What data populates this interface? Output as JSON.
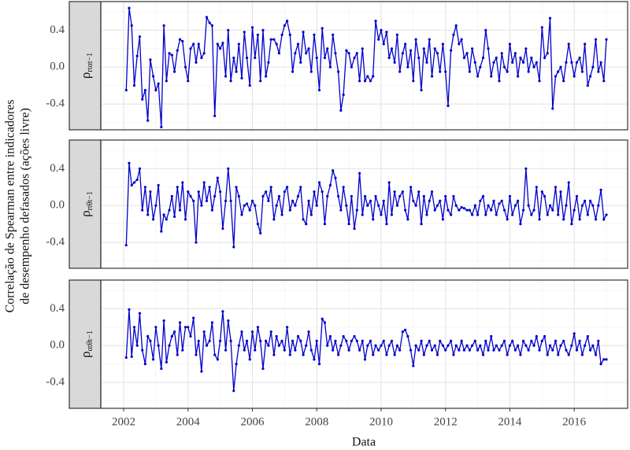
{
  "chart_data": {
    "type": "line",
    "ylabel": [
      "Correlação de Spearman entre indicadores",
      "de desempenho defasados (ações livre)"
    ],
    "xlabel": "Data",
    "xlim": [
      2001.29,
      2017.66
    ],
    "xticks": [
      2002,
      2004,
      2006,
      2008,
      2010,
      2012,
      2014,
      2016
    ],
    "ylim": [
      -0.68,
      0.71
    ],
    "yticks": [
      0.4,
      {
        "value": 0,
        "label": "0.0"
      },
      -0.4
    ],
    "grid": true,
    "x": [
      2002.08,
      2002.17,
      2002.25,
      2002.33,
      2002.42,
      2002.5,
      2002.58,
      2002.67,
      2002.75,
      2002.83,
      2002.92,
      2003,
      2003.08,
      2003.17,
      2003.25,
      2003.33,
      2003.42,
      2003.5,
      2003.58,
      2003.67,
      2003.75,
      2003.83,
      2003.92,
      2004,
      2004.08,
      2004.17,
      2004.25,
      2004.33,
      2004.42,
      2004.5,
      2004.58,
      2004.67,
      2004.75,
      2004.83,
      2004.92,
      2005,
      2005.08,
      2005.17,
      2005.25,
      2005.33,
      2005.42,
      2005.5,
      2005.58,
      2005.67,
      2005.75,
      2005.83,
      2005.92,
      2006,
      2006.08,
      2006.17,
      2006.25,
      2006.33,
      2006.42,
      2006.5,
      2006.58,
      2006.67,
      2006.75,
      2006.83,
      2006.92,
      2007,
      2007.08,
      2007.17,
      2007.25,
      2007.33,
      2007.42,
      2007.5,
      2007.58,
      2007.67,
      2007.75,
      2007.83,
      2007.92,
      2008,
      2008.08,
      2008.17,
      2008.25,
      2008.33,
      2008.42,
      2008.5,
      2008.58,
      2008.67,
      2008.75,
      2008.83,
      2008.92,
      2009,
      2009.08,
      2009.17,
      2009.25,
      2009.33,
      2009.42,
      2009.5,
      2009.58,
      2009.67,
      2009.75,
      2009.83,
      2009.92,
      2010,
      2010.08,
      2010.17,
      2010.25,
      2010.33,
      2010.42,
      2010.5,
      2010.58,
      2010.67,
      2010.75,
      2010.83,
      2010.92,
      2011,
      2011.08,
      2011.17,
      2011.25,
      2011.33,
      2011.42,
      2011.5,
      2011.58,
      2011.67,
      2011.75,
      2011.83,
      2011.92,
      2012,
      2012.08,
      2012.17,
      2012.25,
      2012.33,
      2012.42,
      2012.5,
      2012.58,
      2012.67,
      2012.75,
      2012.83,
      2012.92,
      2013,
      2013.08,
      2013.17,
      2013.25,
      2013.33,
      2013.42,
      2013.5,
      2013.58,
      2013.67,
      2013.75,
      2013.83,
      2013.92,
      2014,
      2014.08,
      2014.17,
      2014.25,
      2014.33,
      2014.42,
      2014.5,
      2014.58,
      2014.67,
      2014.75,
      2014.83,
      2014.92,
      2015,
      2015.08,
      2015.17,
      2015.25,
      2015.33,
      2015.42,
      2015.5,
      2015.58,
      2015.67,
      2015.75,
      2015.83,
      2015.92,
      2016,
      2016.08,
      2016.17,
      2016.25,
      2016.33,
      2016.42,
      2016.5,
      2016.58,
      2016.67,
      2016.75,
      2016.83,
      2016.92,
      2017
    ],
    "series": [
      {
        "name": "ρ",
        "subscript": "rtαt−1",
        "color": "#0000cc",
        "values": [
          -0.25,
          0.64,
          0.45,
          -0.2,
          0.12,
          0.33,
          -0.35,
          -0.25,
          -0.58,
          0.08,
          -0.1,
          -0.25,
          -0.18,
          -0.65,
          0.45,
          -0.15,
          0.15,
          0.13,
          -0.05,
          0.18,
          0.3,
          0.28,
          0.0,
          -0.15,
          0.2,
          0.25,
          0.05,
          0.25,
          0.1,
          0.15,
          0.54,
          0.48,
          0.45,
          -0.53,
          0.25,
          0.2,
          0.26,
          -0.1,
          0.4,
          -0.15,
          0.1,
          -0.05,
          0.25,
          -0.12,
          0.38,
          0.1,
          -0.2,
          0.43,
          0.1,
          0.35,
          -0.15,
          0.4,
          -0.1,
          0.05,
          0.3,
          0.3,
          0.25,
          0.15,
          0.35,
          0.45,
          0.5,
          0.35,
          -0.05,
          0.15,
          0.25,
          0.05,
          0.38,
          0.15,
          0.2,
          -0.05,
          0.35,
          0.1,
          -0.25,
          0.42,
          0.1,
          0.2,
          0.0,
          0.35,
          0.15,
          -0.05,
          -0.47,
          -0.3,
          0.18,
          0.15,
          0.0,
          0.1,
          0.15,
          -0.15,
          0.2,
          -0.15,
          -0.1,
          -0.15,
          -0.1,
          0.5,
          0.3,
          0.4,
          0.25,
          0.38,
          0.1,
          0.2,
          0.05,
          0.35,
          -0.05,
          0.15,
          0.25,
          0.0,
          0.18,
          -0.15,
          0.3,
          0.1,
          -0.25,
          0.2,
          0.05,
          0.3,
          -0.1,
          0.2,
          0.15,
          -0.05,
          0.25,
          -0.05,
          -0.42,
          0.18,
          0.35,
          0.45,
          0.25,
          0.3,
          0.1,
          0.15,
          -0.05,
          0.2,
          0.05,
          -0.1,
          0.0,
          0.1,
          0.4,
          0.2,
          -0.1,
          0.05,
          0.1,
          -0.15,
          0.15,
          0.0,
          -0.05,
          0.25,
          0.05,
          0.15,
          -0.1,
          0.1,
          0.05,
          0.2,
          -0.05,
          0.1,
          0.0,
          0.05,
          -0.15,
          0.43,
          0.1,
          0.15,
          0.53,
          -0.45,
          -0.1,
          -0.05,
          0.0,
          -0.15,
          0.05,
          0.25,
          0.05,
          -0.1,
          0.05,
          0.1,
          -0.05,
          0.25,
          -0.2,
          -0.1,
          0.0,
          0.3,
          -0.05,
          0.05,
          -0.15,
          0.3
        ]
      },
      {
        "name": "ρ",
        "subscript": "rtθt−1",
        "color": "#0000cc",
        "values": [
          -0.43,
          0.46,
          0.22,
          0.25,
          0.28,
          0.4,
          -0.05,
          0.2,
          -0.1,
          0.15,
          -0.15,
          0.0,
          0.22,
          -0.28,
          -0.1,
          -0.15,
          -0.05,
          0.1,
          -0.12,
          0.2,
          -0.05,
          0.25,
          -0.15,
          0.15,
          0.1,
          0.05,
          -0.4,
          0.15,
          0.0,
          0.25,
          0.05,
          0.2,
          -0.05,
          0.1,
          0.3,
          0.15,
          -0.25,
          0.05,
          0.4,
          0.05,
          -0.45,
          0.2,
          0.1,
          -0.1,
          0.0,
          0.02,
          -0.05,
          0.05,
          0.0,
          -0.2,
          -0.3,
          0.1,
          0.15,
          0.05,
          0.2,
          -0.15,
          0.0,
          0.1,
          -0.1,
          0.15,
          0.2,
          -0.05,
          0.05,
          0.0,
          0.1,
          0.2,
          -0.15,
          -0.2,
          0.05,
          -0.1,
          0.15,
          0.0,
          0.25,
          0.15,
          -0.2,
          0.1,
          0.22,
          0.38,
          0.3,
          0.1,
          -0.05,
          0.2,
          0.0,
          -0.2,
          0.1,
          -0.25,
          -0.05,
          0.35,
          -0.1,
          0.1,
          0.0,
          0.05,
          -0.15,
          0.1,
          0.0,
          -0.1,
          0.05,
          -0.2,
          0.25,
          -0.1,
          0.15,
          0.0,
          0.1,
          0.15,
          -0.05,
          -0.15,
          0.2,
          0.05,
          0.0,
          0.15,
          -0.2,
          0.1,
          -0.1,
          0.05,
          0.15,
          -0.05,
          0.0,
          0.05,
          -0.15,
          0.1,
          -0.05,
          -0.1,
          0.1,
          0.0,
          -0.05,
          -0.02,
          -0.03,
          -0.05,
          -0.05,
          -0.1,
          0.0,
          -0.1,
          0.05,
          0.1,
          -0.1,
          0.0,
          -0.05,
          0.05,
          -0.1,
          0.02,
          0.05,
          -0.05,
          -0.15,
          0.1,
          -0.1,
          0.0,
          0.05,
          -0.2,
          -0.05,
          0.4,
          0.0,
          -0.1,
          -0.05,
          0.2,
          -0.15,
          0.15,
          0.1,
          -0.1,
          0.0,
          -0.05,
          0.2,
          -0.1,
          0.15,
          -0.15,
          0.0,
          0.25,
          -0.2,
          -0.05,
          0.1,
          -0.15,
          0.0,
          0.05,
          -0.1,
          0.05,
          0.0,
          -0.15,
          0.0,
          0.17,
          -0.15,
          -0.1
        ]
      },
      {
        "name": "ρ",
        "subscript": "αtθt−1",
        "color": "#0000cc",
        "values": [
          -0.13,
          0.39,
          -0.12,
          0.2,
          0.0,
          0.35,
          -0.05,
          -0.2,
          0.1,
          0.05,
          -0.15,
          0.2,
          0.0,
          -0.25,
          0.27,
          -0.18,
          0.0,
          0.1,
          0.15,
          -0.1,
          0.25,
          -0.05,
          0.2,
          0.2,
          0.1,
          0.3,
          -0.1,
          0.05,
          -0.28,
          0.15,
          0.0,
          0.05,
          0.25,
          -0.1,
          -0.15,
          0.05,
          0.37,
          -0.05,
          0.27,
          0.05,
          -0.49,
          -0.2,
          0.0,
          0.15,
          -0.05,
          0.05,
          -0.15,
          0.15,
          -0.05,
          0.2,
          0.05,
          -0.25,
          0.05,
          0.0,
          0.15,
          -0.1,
          0.1,
          0.0,
          0.05,
          -0.05,
          0.2,
          -0.1,
          0.05,
          -0.05,
          0.1,
          0.05,
          -0.1,
          0.0,
          0.15,
          -0.05,
          -0.15,
          0.05,
          -0.2,
          0.29,
          0.25,
          0.0,
          0.1,
          -0.05,
          0.05,
          -0.1,
          0.0,
          0.1,
          0.05,
          -0.05,
          0.05,
          0.1,
          0.05,
          -0.05,
          0.05,
          -0.15,
          0.0,
          0.05,
          -0.1,
          0.0,
          -0.05,
          0.0,
          0.05,
          -0.1,
          0.0,
          0.05,
          -0.1,
          0.0,
          -0.05,
          0.15,
          0.17,
          0.1,
          -0.05,
          -0.22,
          0.0,
          -0.05,
          0.05,
          -0.1,
          0.0,
          0.05,
          -0.05,
          0.0,
          -0.1,
          0.05,
          0.0,
          -0.05,
          0.0,
          0.05,
          -0.1,
          0.0,
          -0.05,
          0.05,
          -0.05,
          0.0,
          -0.05,
          0.0,
          0.05,
          -0.05,
          0.0,
          -0.1,
          0.05,
          -0.05,
          0.1,
          -0.05,
          0.0,
          -0.05,
          0.0,
          0.05,
          -0.1,
          0.0,
          0.05,
          -0.05,
          0.0,
          -0.1,
          0.05,
          0.0,
          -0.05,
          0.05,
          0.0,
          0.1,
          -0.05,
          0.05,
          0.1,
          -0.1,
          0.0,
          -0.05,
          0.05,
          -0.1,
          0.0,
          0.05,
          -0.05,
          -0.1,
          0.0,
          0.13,
          -0.05,
          0.05,
          -0.1,
          0.0,
          0.1,
          -0.05,
          0.0,
          -0.1,
          0.05,
          -0.2,
          -0.15,
          -0.15
        ]
      }
    ]
  }
}
